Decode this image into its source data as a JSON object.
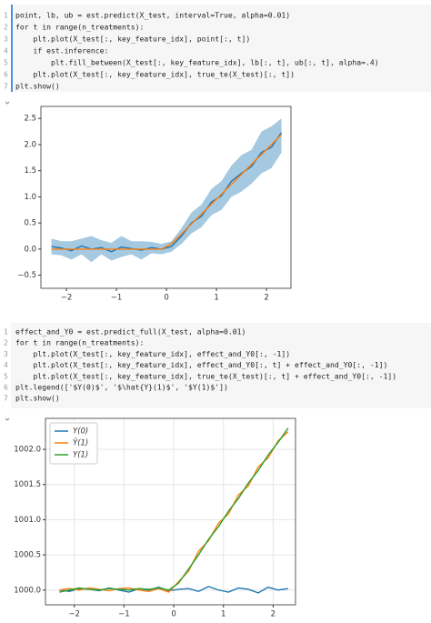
{
  "cells": [
    {
      "lines": [
        {
          "number": "1",
          "text": "point, lb, ub = est.predict(X_test, interval=True, alpha=0.01)"
        },
        {
          "number": "2",
          "text": "for t in range(n_treatments):"
        },
        {
          "number": "3",
          "text": "    plt.plot(X_test[:, key_feature_idx], point[:, t])"
        },
        {
          "number": "4",
          "text": "    if est.inference:"
        },
        {
          "number": "5",
          "text": "        plt.fill_between(X_test[:, key_feature_idx], lb[:, t], ub[:, t], alpha=.4)"
        },
        {
          "number": "6",
          "text": "    plt.plot(X_test[:, key_feature_idx], true_te(X_test)[:, t])"
        },
        {
          "number": "7",
          "text": "plt.show()"
        }
      ]
    },
    {
      "lines": [
        {
          "number": "1",
          "text": "effect_and_Y0 = est.predict_full(X_test, alpha=0.01)"
        },
        {
          "number": "2",
          "text": "for t in range(n_treatments):"
        },
        {
          "number": "3",
          "text": "    plt.plot(X_test[:, key_feature_idx], effect_and_Y0[:, -1])"
        },
        {
          "number": "4",
          "text": "    plt.plot(X_test[:, key_feature_idx], effect_and_Y0[:, t] + effect_and_Y0[:, -1])"
        },
        {
          "number": "5",
          "text": "    plt.plot(X_test[:, key_feature_idx], true_te(X_test)[:, t] + effect_and_Y0[:, -1])"
        },
        {
          "number": "6",
          "text": "plt.legend(['$Y(0)$', '$\\hat{Y}(1)$', '$Y(1)$'])"
        },
        {
          "number": "7",
          "text": "plt.show()"
        }
      ]
    }
  ],
  "chart_data": [
    {
      "type": "line",
      "grid": false,
      "x": [
        -2.3,
        -2.1,
        -1.9,
        -1.7,
        -1.5,
        -1.3,
        -1.1,
        -0.9,
        -0.7,
        -0.5,
        -0.3,
        -0.1,
        0.1,
        0.3,
        0.5,
        0.7,
        0.9,
        1.1,
        1.3,
        1.5,
        1.7,
        1.9,
        2.1,
        2.3
      ],
      "band": {
        "color": "#1f77b4",
        "opacity": 0.4,
        "lower": [
          -0.1,
          -0.12,
          -0.2,
          -0.1,
          -0.25,
          -0.1,
          -0.22,
          -0.15,
          -0.1,
          -0.2,
          -0.08,
          -0.1,
          -0.05,
          0.1,
          0.3,
          0.42,
          0.65,
          0.75,
          1.0,
          1.1,
          1.25,
          1.45,
          1.55,
          1.85
        ],
        "upper": [
          0.2,
          0.15,
          0.15,
          0.2,
          0.25,
          0.17,
          0.12,
          0.25,
          0.15,
          0.15,
          0.14,
          0.1,
          0.15,
          0.4,
          0.7,
          0.85,
          1.15,
          1.3,
          1.6,
          1.8,
          1.9,
          2.25,
          2.35,
          2.5
        ]
      },
      "series": [
        {
          "color": "#1f77b4",
          "values": [
            0.05,
            0.02,
            -0.03,
            0.06,
            0.0,
            0.03,
            -0.05,
            0.04,
            0.01,
            -0.02,
            0.03,
            0.0,
            0.05,
            0.25,
            0.5,
            0.63,
            0.9,
            1.02,
            1.3,
            1.45,
            1.58,
            1.85,
            1.95,
            2.23
          ]
        },
        {
          "color": "#ff7f0e",
          "values": [
            0,
            0,
            0,
            0,
            0,
            0,
            0,
            0,
            0,
            0,
            0,
            0,
            0.1,
            0.29,
            0.48,
            0.67,
            0.86,
            1.05,
            1.24,
            1.43,
            1.62,
            1.81,
            2.0,
            2.19
          ]
        }
      ],
      "xlim": [
        -2.51,
        2.49
      ],
      "ylim": [
        -0.75,
        2.73
      ],
      "xticks": [
        {
          "value": -2,
          "label": "−2"
        },
        {
          "value": -1,
          "label": "−1"
        },
        0,
        1,
        2
      ],
      "yticks": [
        {
          "value": -0.5,
          "label": "−0.5"
        },
        {
          "value": 0,
          "label": "0.0"
        },
        {
          "value": 0.5,
          "label": "0.5"
        },
        {
          "value": 1,
          "label": "1.0"
        },
        {
          "value": 1.5,
          "label": "1.5"
        },
        {
          "value": 2,
          "label": "2.0"
        },
        {
          "value": 2.5,
          "label": "2.5"
        }
      ]
    },
    {
      "type": "line",
      "grid": true,
      "legend": "upper left",
      "x": [
        -2.3,
        -2.1,
        -1.9,
        -1.7,
        -1.5,
        -1.3,
        -1.1,
        -0.9,
        -0.7,
        -0.5,
        -0.3,
        -0.1,
        0.1,
        0.3,
        0.5,
        0.7,
        0.9,
        1.1,
        1.3,
        1.5,
        1.7,
        1.9,
        2.1,
        2.3
      ],
      "series": [
        {
          "name": "Y(0)",
          "color": "#1f77b4",
          "values": [
            1000.0,
            999.98,
            1000.02,
            1000.01,
            999.99,
            1000.03,
            1000.0,
            999.97,
            1000.02,
            1000.0,
            1000.04,
            999.99,
            1000.01,
            1000.02,
            999.98,
            1000.05,
            1000.0,
            999.97,
            1000.03,
            1000.01,
            999.96,
            1000.04,
            1000.0,
            1000.02
          ]
        },
        {
          "name": "Ŷ(1)",
          "color": "#ff7f0e",
          "values": [
            1000.0,
            1000.02,
            1000.0,
            1000.03,
            1000.01,
            999.99,
            1000.02,
            1000.03,
            1000.0,
            999.98,
            1000.02,
            999.97,
            1000.12,
            1000.27,
            1000.55,
            1000.7,
            1000.95,
            1001.08,
            1001.35,
            1001.48,
            1001.75,
            1001.88,
            1002.12,
            1002.25
          ]
        },
        {
          "name": "Y(1)",
          "color": "#2ca02c",
          "values": [
            999.97,
            1000.0,
            1000.03,
            1000.01,
            1000.0,
            1000.02,
            1000.01,
            1000.0,
            1000.02,
            1000.01,
            1000.03,
            1000.0,
            1000.1,
            1000.3,
            1000.5,
            1000.72,
            1000.9,
            1001.12,
            1001.3,
            1001.52,
            1001.7,
            1001.92,
            1002.1,
            1002.3
          ]
        }
      ],
      "xlim": [
        -2.58,
        2.45
      ],
      "ylim": [
        999.79,
        1002.44
      ],
      "xticks": [
        {
          "value": -2,
          "label": "−2"
        },
        {
          "value": -1,
          "label": "−1"
        },
        0,
        1,
        2
      ],
      "yticks": [
        {
          "value": 1000,
          "label": "1000.0"
        },
        {
          "value": 1000.5,
          "label": "1000.5"
        },
        {
          "value": 1001,
          "label": "1001.0"
        },
        {
          "value": 1001.5,
          "label": "1001.5"
        },
        {
          "value": 1002,
          "label": "1002.0"
        }
      ]
    }
  ]
}
